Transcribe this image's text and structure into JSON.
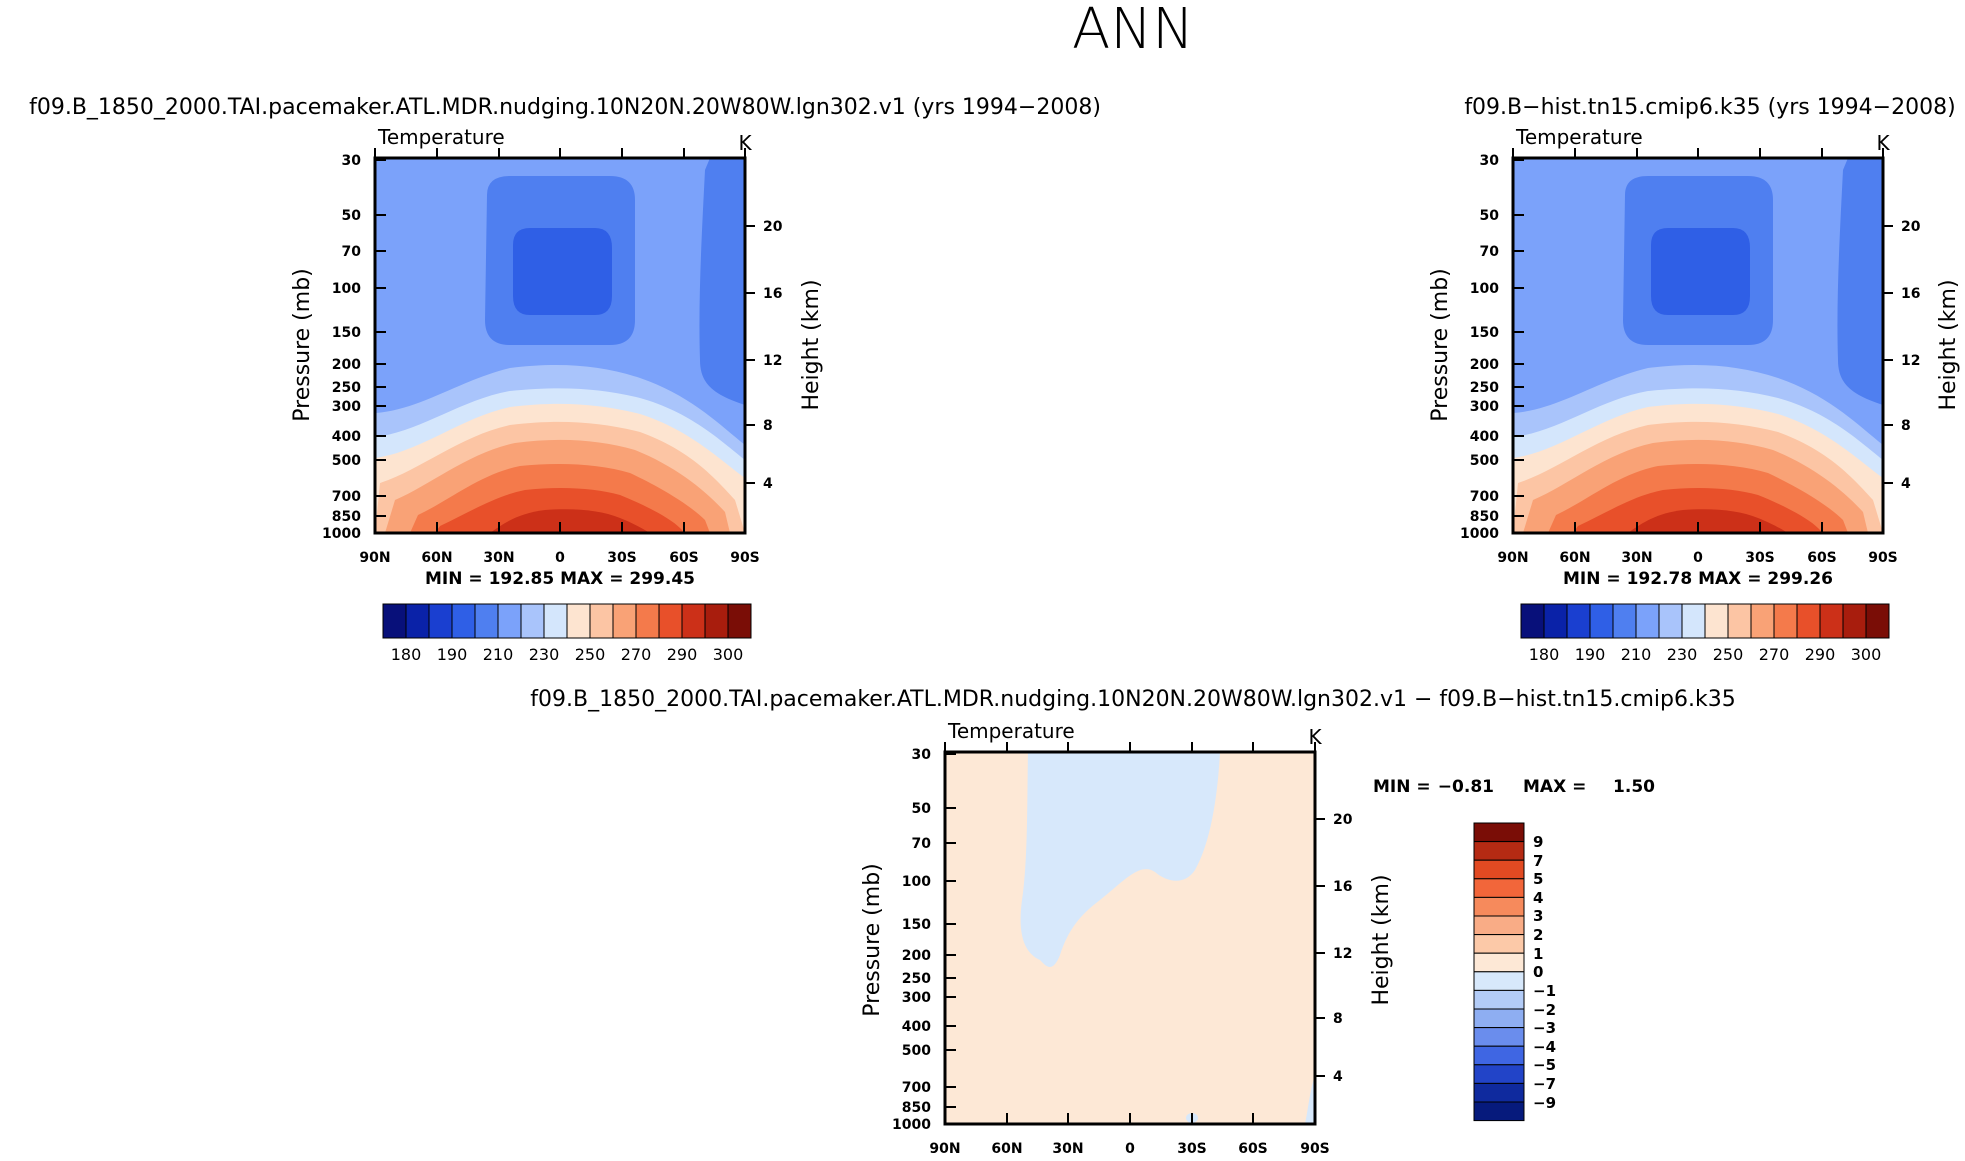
{
  "figure": {
    "title": "ANN",
    "diff_title": "f09.B_1850_2000.TAI.pacemaker.ATL.MDR.nudging.10N20N.20W80W.lgn302.v1  −  f09.B−hist.tn15.cmip6.k35"
  },
  "chart_data": [
    {
      "type": "heatmap",
      "name": "model-case",
      "case_title": "f09.B_1850_2000.TAI.pacemaker.ATL.MDR.nudging.10N20N.20W80W.lgn302.v1  (yrs  1994−2008)",
      "variable": "Temperature",
      "units": "K",
      "ylabel": "Pressure  (mb)",
      "y2label": "Height  (km)",
      "xticks": [
        "90N",
        "60N",
        "30N",
        "0",
        "30S",
        "60S",
        "90S"
      ],
      "yticks": [
        "30",
        "50",
        "70",
        "100",
        "150",
        "200",
        "250",
        "300",
        "400",
        "500",
        "700",
        "850",
        "1000"
      ],
      "y2ticks": [
        "20",
        "16",
        "12",
        "8",
        "4"
      ],
      "min": "192.85",
      "max": "299.45",
      "colorbar_labels": [
        "180",
        "190",
        "210",
        "230",
        "250",
        "270",
        "290",
        "300"
      ]
    },
    {
      "type": "heatmap",
      "name": "control-case",
      "case_title": "f09.B−hist.tn15.cmip6.k35  (yrs  1994−2008)",
      "variable": "Temperature",
      "units": "K",
      "ylabel": "Pressure  (mb)",
      "y2label": "Height  (km)",
      "xticks": [
        "90N",
        "60N",
        "30N",
        "0",
        "30S",
        "60S",
        "90S"
      ],
      "yticks": [
        "30",
        "50",
        "70",
        "100",
        "150",
        "200",
        "250",
        "300",
        "400",
        "500",
        "700",
        "850",
        "1000"
      ],
      "y2ticks": [
        "20",
        "16",
        "12",
        "8",
        "4"
      ],
      "min": "192.78",
      "max": "299.26",
      "colorbar_labels": [
        "180",
        "190",
        "210",
        "230",
        "250",
        "270",
        "290",
        "300"
      ]
    },
    {
      "type": "heatmap",
      "name": "difference",
      "variable": "Temperature",
      "units": "K",
      "ylabel": "Pressure  (mb)",
      "y2label": "Height  (km)",
      "xticks": [
        "90N",
        "60N",
        "30N",
        "0",
        "30S",
        "60S",
        "90S"
      ],
      "yticks": [
        "30",
        "50",
        "70",
        "100",
        "150",
        "200",
        "250",
        "300",
        "400",
        "500",
        "700",
        "850",
        "1000"
      ],
      "y2ticks": [
        "20",
        "16",
        "12",
        "8",
        "4"
      ],
      "min_label": "MIN =",
      "min": "−0.81",
      "max_label": "MAX =",
      "max": "1.50",
      "colorbar_labels": [
        "9",
        "7",
        "5",
        "4",
        "3",
        "2",
        "1",
        "0",
        "−1",
        "−2",
        "−3",
        "−4",
        "−5",
        "−7",
        "−9"
      ]
    }
  ],
  "colors": {
    "abs_scale": [
      "#08107a",
      "#0a22a8",
      "#1a3fd0",
      "#2f5fe6",
      "#4f7ff0",
      "#7ba2fa",
      "#a9c4fb",
      "#d4e6fc",
      "#fde4d0",
      "#fcc5a4",
      "#f9a276",
      "#f47a4b",
      "#e8502a",
      "#cc3018",
      "#a81d0d",
      "#7a0d06"
    ],
    "diff_scale": [
      "#7a0d06",
      "#b52a13",
      "#e24a22",
      "#f2663a",
      "#f68a5c",
      "#f9ac86",
      "#fcc9a8",
      "#fde8d6",
      "#d7e8fb",
      "#b3ccf7",
      "#8eaef2",
      "#6a8ded",
      "#3f66e3",
      "#2244c8",
      "#0f2a9e",
      "#061a7c"
    ]
  }
}
